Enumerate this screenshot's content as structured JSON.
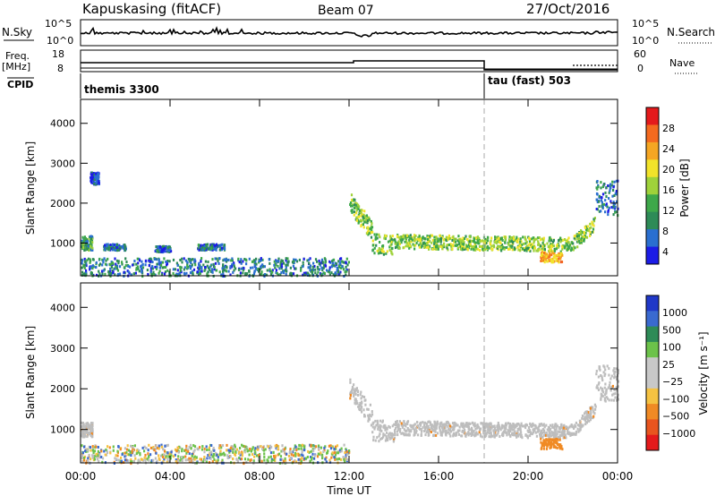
{
  "header": {
    "station": "Kapuskasing (fitACF)",
    "beam": "Beam 07",
    "date": "27/Oct/2016"
  },
  "strip_labels": {
    "nsky": "N.Sky",
    "nsky_ticks": [
      "10^5",
      "10^0"
    ],
    "nsearch": "N.Search",
    "nsearch_ticks": [
      "10^5",
      "10^0"
    ],
    "freq": "Freq.",
    "freq_unit": "[MHz]",
    "freq_ticks": [
      "18",
      "8"
    ],
    "nave": "Nave",
    "nave_ticks": [
      "60",
      "0"
    ],
    "cpid": "CPID",
    "cpid_modes": [
      "themis 3300",
      "tau (fast) 503"
    ]
  },
  "colors": {
    "power_scale": [
      "#1c1ce6",
      "#2a6fd0",
      "#2e8b57",
      "#3ea84a",
      "#9fd23a",
      "#f2e32a",
      "#f5a623",
      "#f46a1f",
      "#e41a1c"
    ],
    "velocity_scale": [
      "#2038c8",
      "#3a6ad0",
      "#2e8b57",
      "#6cc24a",
      "#c8c8c8",
      "#c8c8c8",
      "#f5c242",
      "#f08a24",
      "#e8551f",
      "#e41a1c"
    ],
    "ground_scatter": "#bdbdbd"
  },
  "chart_data": [
    {
      "type": "heatmap",
      "title": "",
      "xlabel": "",
      "ylabel": "Slant Range [km]",
      "xlim": [
        "00:00",
        "24:00"
      ],
      "ylim": [
        180,
        4600
      ],
      "x_ticks": [
        "00:00",
        "04:00",
        "08:00",
        "12:00",
        "16:00",
        "20:00",
        "00:00"
      ],
      "y_ticks": [
        1000,
        2000,
        3000,
        4000
      ],
      "colorbar": {
        "label": "Power [dB]",
        "ticks": [
          4,
          8,
          12,
          16,
          20,
          24,
          28
        ],
        "range": [
          0,
          30
        ]
      },
      "mode_change_time": "18:00",
      "regions": [
        {
          "name": "low-range echoes",
          "t_start": 0.0,
          "t_end": 12.0,
          "r_start": 200,
          "r_end": 650,
          "value": 7
        },
        {
          "name": "early patch",
          "t_start": 0.0,
          "t_end": 0.5,
          "r_start": 850,
          "r_end": 1200,
          "value": 9
        },
        {
          "name": "patch 01:30",
          "t_start": 1.0,
          "t_end": 2.0,
          "r_start": 850,
          "r_end": 1000,
          "value": 6
        },
        {
          "name": "patch 03:30",
          "t_start": 3.3,
          "t_end": 4.0,
          "r_start": 800,
          "r_end": 950,
          "value": 6
        },
        {
          "name": "patch 05:30",
          "t_start": 5.2,
          "t_end": 6.4,
          "r_start": 850,
          "r_end": 1000,
          "value": 6
        },
        {
          "name": "scatter 00:30",
          "t_start": 0.4,
          "t_end": 0.8,
          "r_start": 2500,
          "r_end": 2800,
          "value": 4
        },
        {
          "name": "main echo band",
          "t_start": 12.0,
          "t_end": 23.0,
          "r_start": 900,
          "r_end": 2400,
          "value": 14
        },
        {
          "name": "echo 21:00",
          "t_start": 20.5,
          "t_end": 21.5,
          "r_start": 550,
          "r_end": 800,
          "value": 22
        },
        {
          "name": "late streak",
          "t_start": 23.0,
          "t_end": 24.0,
          "r_start": 1700,
          "r_end": 2600,
          "value": 6
        }
      ]
    },
    {
      "type": "heatmap",
      "title": "",
      "xlabel": "Time UT",
      "ylabel": "Slant Range [km]",
      "xlim": [
        "00:00",
        "24:00"
      ],
      "ylim": [
        180,
        4600
      ],
      "x_ticks": [
        "00:00",
        "04:00",
        "08:00",
        "12:00",
        "16:00",
        "20:00",
        "00:00"
      ],
      "y_ticks": [
        1000,
        2000,
        3000,
        4000
      ],
      "colorbar": {
        "label": "Velocity [m s^-1]",
        "ticks": [
          1000,
          500,
          100,
          25,
          -25,
          -100,
          -500,
          -1000
        ]
      },
      "mode_change_time": "18:00",
      "regions": [
        {
          "name": "low-range mixed",
          "t_start": 0.0,
          "t_end": 12.0,
          "r_start": 200,
          "r_end": 650,
          "value": 50
        },
        {
          "name": "main band ground scatter",
          "t_start": 12.0,
          "t_end": 23.0,
          "r_start": 900,
          "r_end": 2400,
          "value": 0
        },
        {
          "name": "negative velocity echo",
          "t_start": 20.5,
          "t_end": 21.5,
          "r_start": 550,
          "r_end": 800,
          "value": -300
        },
        {
          "name": "early ground scatter",
          "t_start": 0.0,
          "t_end": 0.5,
          "r_start": 850,
          "r_end": 1200,
          "value": 0
        },
        {
          "name": "late ground scatter",
          "t_start": 23.0,
          "t_end": 24.0,
          "r_start": 1700,
          "r_end": 2600,
          "value": 0
        }
      ]
    }
  ],
  "colorbar_labels": {
    "power_title": "Power [dB]",
    "power_ticks": [
      "28",
      "24",
      "20",
      "16",
      "12",
      "8",
      "4"
    ],
    "velocity_title": "Velocity [m s⁻¹]",
    "velocity_ticks": [
      "1000",
      "500",
      "100",
      "25",
      "−25",
      "−100",
      "−500",
      "−1000"
    ]
  },
  "axes": {
    "ylabel": "Slant Range [km]",
    "xlabel": "Time UT",
    "y_ticks": [
      "1000",
      "2000",
      "3000",
      "4000"
    ],
    "x_ticks": [
      "00:00",
      "04:00",
      "08:00",
      "12:00",
      "16:00",
      "20:00",
      "00:00"
    ]
  }
}
